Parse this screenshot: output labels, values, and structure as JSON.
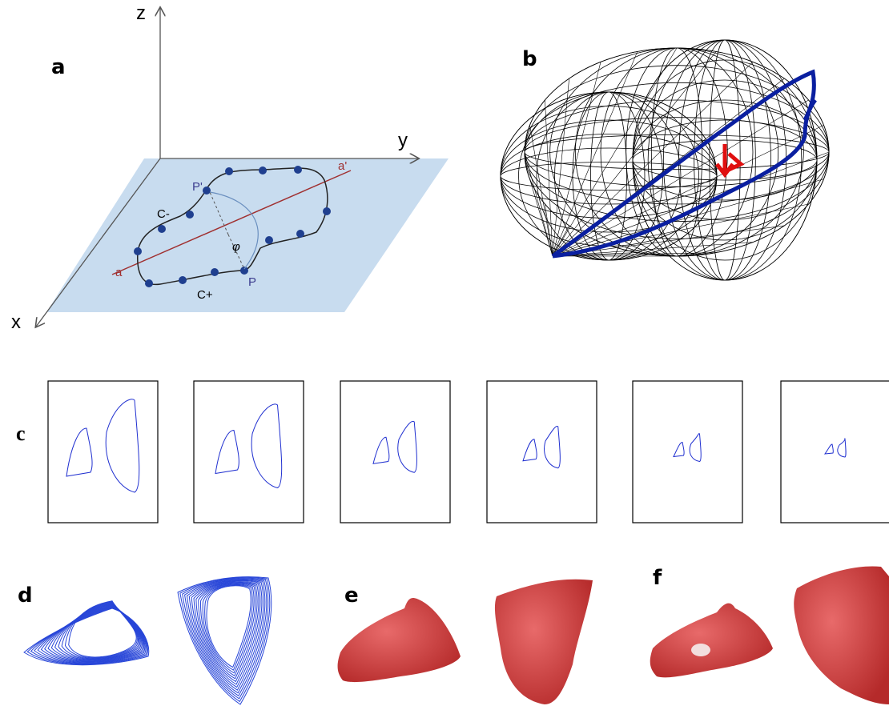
{
  "panels": {
    "a": {
      "label": "a",
      "axes": {
        "z": "z",
        "y": "y",
        "x": "x"
      },
      "labels": {
        "p_prime": "P'",
        "p": "P",
        "a": "a",
        "a_prime": "a'",
        "c_minus": "C-",
        "c_plus": "C+",
        "phi": "φ"
      }
    },
    "b": {
      "label": "b"
    },
    "c": {
      "label": "c"
    },
    "d": {
      "label": "d"
    },
    "e": {
      "label": "e"
    },
    "f": {
      "label": "f"
    }
  }
}
